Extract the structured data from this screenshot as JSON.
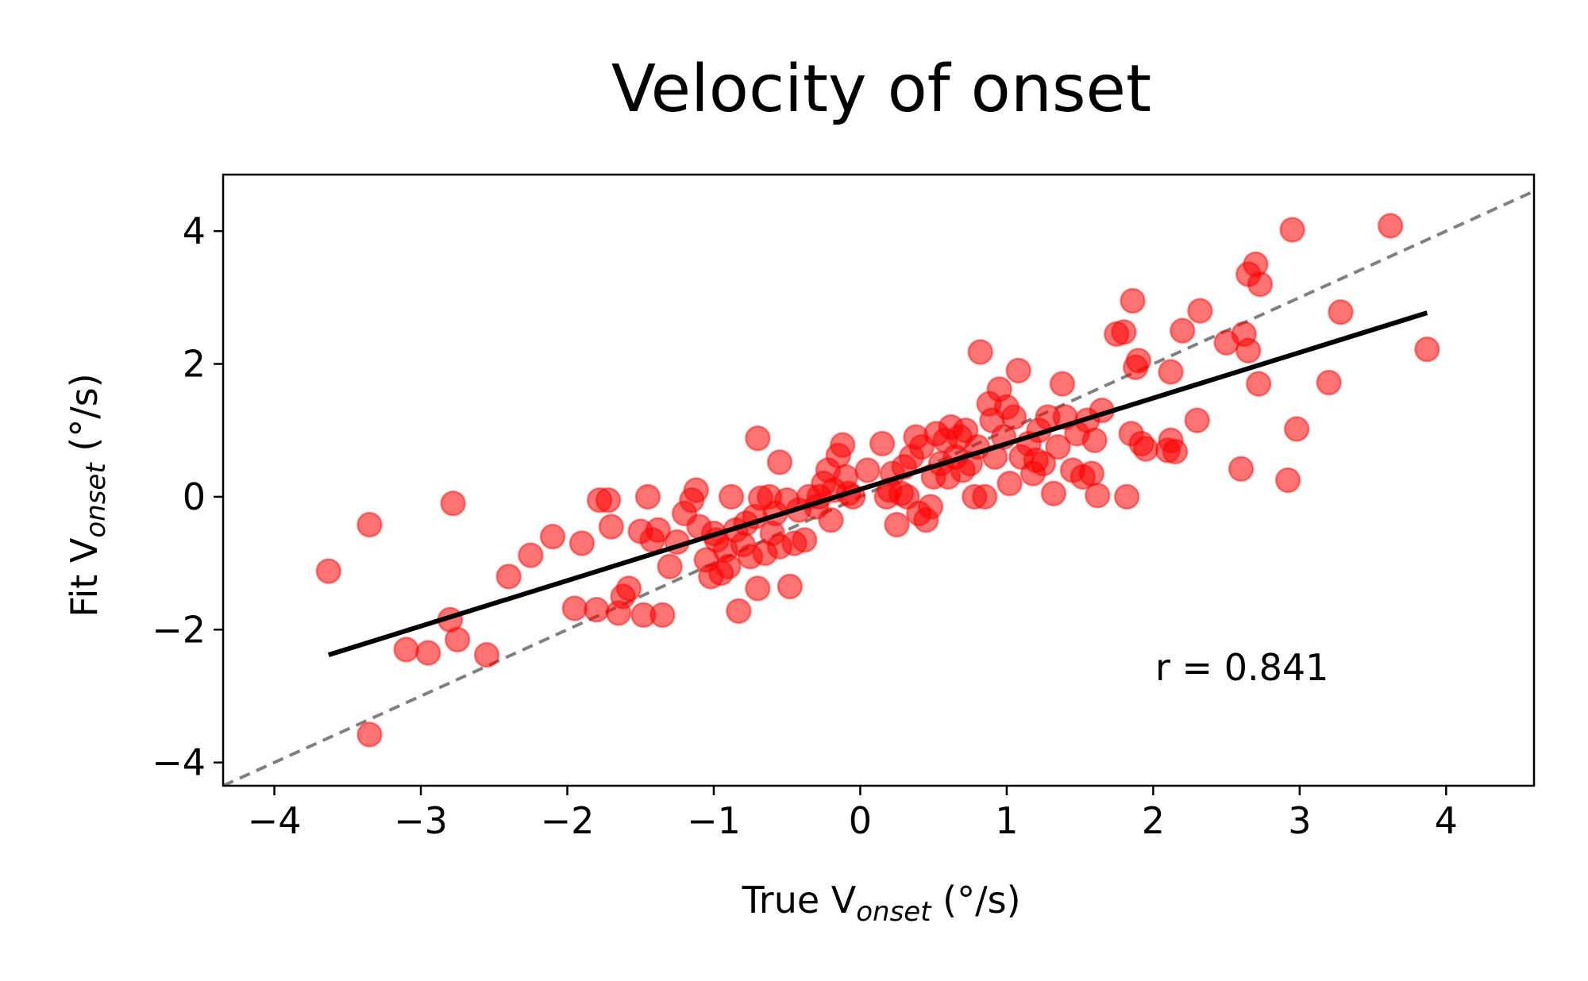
{
  "chart_data": {
    "type": "scatter",
    "title": "Velocity of onset",
    "xlabel": {
      "prefix": "True V",
      "sub": "onset",
      "suffix": " (°/s)"
    },
    "ylabel": {
      "prefix": "Fit V",
      "sub": "onset",
      "suffix": " (°/s)"
    },
    "xlim": [
      -4.35,
      4.6
    ],
    "ylim": [
      -4.35,
      4.85
    ],
    "xticks": [
      -4,
      -3,
      -2,
      -1,
      0,
      1,
      2,
      3,
      4
    ],
    "yticks": [
      -4,
      -2,
      0,
      2,
      4
    ],
    "grid": false,
    "point_color": "#ff0000",
    "point_alpha": 0.55,
    "fit_line": {
      "color": "#000000",
      "x": [
        -3.63,
        3.87
      ],
      "y": [
        -2.38,
        2.77
      ]
    },
    "identity_line": {
      "color": "#808080",
      "style": "dashed"
    },
    "annotation": "r = 0.841",
    "points": [
      [
        -3.63,
        -1.12
      ],
      [
        -3.35,
        -0.42
      ],
      [
        -3.35,
        -3.58
      ],
      [
        -3.1,
        -2.3
      ],
      [
        -2.95,
        -2.35
      ],
      [
        -2.8,
        -1.85
      ],
      [
        -2.75,
        -2.15
      ],
      [
        -2.78,
        -0.1
      ],
      [
        -2.55,
        -2.38
      ],
      [
        -2.4,
        -1.2
      ],
      [
        -2.25,
        -0.88
      ],
      [
        -2.1,
        -0.6
      ],
      [
        -1.95,
        -1.68
      ],
      [
        -1.9,
        -0.7
      ],
      [
        -1.8,
        -1.7
      ],
      [
        -1.78,
        -0.05
      ],
      [
        -1.72,
        -0.05
      ],
      [
        -1.7,
        -0.45
      ],
      [
        -1.65,
        -1.75
      ],
      [
        -1.62,
        -1.5
      ],
      [
        -1.58,
        -1.38
      ],
      [
        -1.5,
        -0.52
      ],
      [
        -1.48,
        -1.78
      ],
      [
        -1.45,
        0.0
      ],
      [
        -1.42,
        -0.65
      ],
      [
        -1.38,
        -0.5
      ],
      [
        -1.35,
        -1.78
      ],
      [
        -1.3,
        -1.05
      ],
      [
        -1.25,
        -0.68
      ],
      [
        -1.2,
        -0.25
      ],
      [
        -1.15,
        -0.05
      ],
      [
        -1.12,
        0.1
      ],
      [
        -1.1,
        -0.45
      ],
      [
        -1.05,
        -0.95
      ],
      [
        -1.02,
        -1.2
      ],
      [
        -1.0,
        -0.55
      ],
      [
        -0.98,
        -0.65
      ],
      [
        -0.95,
        -1.15
      ],
      [
        -0.92,
        -0.8
      ],
      [
        -0.9,
        -1.05
      ],
      [
        -0.88,
        0.0
      ],
      [
        -0.85,
        -0.5
      ],
      [
        -0.83,
        -1.72
      ],
      [
        -0.8,
        -0.72
      ],
      [
        -0.78,
        -0.4
      ],
      [
        -0.75,
        -0.9
      ],
      [
        -0.72,
        -0.3
      ],
      [
        -0.7,
        0.88
      ],
      [
        -0.7,
        -1.38
      ],
      [
        -0.68,
        -0.02
      ],
      [
        -0.65,
        -0.85
      ],
      [
        -0.62,
        0.0
      ],
      [
        -0.6,
        -0.55
      ],
      [
        -0.58,
        -0.25
      ],
      [
        -0.55,
        -0.75
      ],
      [
        -0.55,
        0.52
      ],
      [
        -0.5,
        -0.05
      ],
      [
        -0.48,
        -1.35
      ],
      [
        -0.45,
        -0.7
      ],
      [
        -0.42,
        -0.2
      ],
      [
        -0.38,
        -0.65
      ],
      [
        -0.35,
        0.0
      ],
      [
        -0.3,
        -0.15
      ],
      [
        -0.28,
        0.0
      ],
      [
        -0.25,
        0.2
      ],
      [
        -0.22,
        0.4
      ],
      [
        -0.2,
        -0.35
      ],
      [
        -0.18,
        0.1
      ],
      [
        -0.15,
        0.62
      ],
      [
        -0.12,
        0.78
      ],
      [
        -0.1,
        0.3
      ],
      [
        -0.08,
        0.05
      ],
      [
        -0.05,
        0.0
      ],
      [
        0.05,
        0.4
      ],
      [
        0.15,
        0.8
      ],
      [
        0.18,
        0.0
      ],
      [
        0.2,
        0.1
      ],
      [
        0.22,
        0.35
      ],
      [
        0.25,
        -0.42
      ],
      [
        0.28,
        0.05
      ],
      [
        0.3,
        0.45
      ],
      [
        0.32,
        0.0
      ],
      [
        0.35,
        0.6
      ],
      [
        0.38,
        0.9
      ],
      [
        0.4,
        -0.25
      ],
      [
        0.42,
        0.75
      ],
      [
        0.45,
        -0.35
      ],
      [
        0.48,
        -0.15
      ],
      [
        0.5,
        0.3
      ],
      [
        0.52,
        0.95
      ],
      [
        0.55,
        0.5
      ],
      [
        0.58,
        0.85
      ],
      [
        0.6,
        0.3
      ],
      [
        0.62,
        1.05
      ],
      [
        0.65,
        0.6
      ],
      [
        0.68,
        0.9
      ],
      [
        0.7,
        0.4
      ],
      [
        0.72,
        1.0
      ],
      [
        0.75,
        0.5
      ],
      [
        0.78,
        0.0
      ],
      [
        0.8,
        0.75
      ],
      [
        0.82,
        2.18
      ],
      [
        0.85,
        0.0
      ],
      [
        0.88,
        1.4
      ],
      [
        0.9,
        1.15
      ],
      [
        0.92,
        0.6
      ],
      [
        0.95,
        1.62
      ],
      [
        0.98,
        0.9
      ],
      [
        1.0,
        1.35
      ],
      [
        1.02,
        0.2
      ],
      [
        1.05,
        1.2
      ],
      [
        1.08,
        1.9
      ],
      [
        1.1,
        0.6
      ],
      [
        1.15,
        0.8
      ],
      [
        1.18,
        0.35
      ],
      [
        1.2,
        0.55
      ],
      [
        1.22,
        1.0
      ],
      [
        1.25,
        0.5
      ],
      [
        1.28,
        1.2
      ],
      [
        1.32,
        0.05
      ],
      [
        1.35,
        0.75
      ],
      [
        1.38,
        1.7
      ],
      [
        1.4,
        1.2
      ],
      [
        1.45,
        0.4
      ],
      [
        1.48,
        0.95
      ],
      [
        1.52,
        0.3
      ],
      [
        1.55,
        1.15
      ],
      [
        1.58,
        0.35
      ],
      [
        1.6,
        0.85
      ],
      [
        1.62,
        0.02
      ],
      [
        1.65,
        1.3
      ],
      [
        1.75,
        2.45
      ],
      [
        1.8,
        2.48
      ],
      [
        1.82,
        0.0
      ],
      [
        1.85,
        0.95
      ],
      [
        1.86,
        2.95
      ],
      [
        1.88,
        1.95
      ],
      [
        1.9,
        2.05
      ],
      [
        1.92,
        0.8
      ],
      [
        1.95,
        0.72
      ],
      [
        2.1,
        0.7
      ],
      [
        2.12,
        0.85
      ],
      [
        2.15,
        0.68
      ],
      [
        2.12,
        1.88
      ],
      [
        2.2,
        2.5
      ],
      [
        2.3,
        1.15
      ],
      [
        2.32,
        2.8
      ],
      [
        2.5,
        2.32
      ],
      [
        2.6,
        0.42
      ],
      [
        2.62,
        2.45
      ],
      [
        2.65,
        3.35
      ],
      [
        2.65,
        2.2
      ],
      [
        2.7,
        3.5
      ],
      [
        2.72,
        1.7
      ],
      [
        2.73,
        3.2
      ],
      [
        2.92,
        0.25
      ],
      [
        2.95,
        4.02
      ],
      [
        2.98,
        1.02
      ],
      [
        3.2,
        1.72
      ],
      [
        3.28,
        2.78
      ],
      [
        3.62,
        4.08
      ],
      [
        3.87,
        2.22
      ]
    ]
  }
}
